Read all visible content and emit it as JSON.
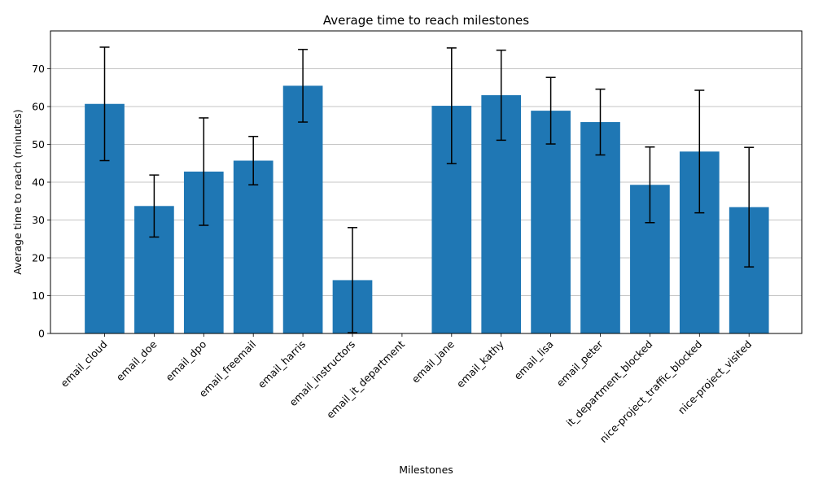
{
  "chart_data": {
    "type": "bar",
    "title": "Average time to reach milestones",
    "xlabel": "Milestones",
    "ylabel": "Average time to reach (minutes)",
    "ylim": [
      0,
      80
    ],
    "yticks": [
      0,
      10,
      20,
      30,
      40,
      50,
      60,
      70
    ],
    "grid": "y",
    "bar_color": "#1f77b4",
    "error_bar_color": "#000000",
    "categories": [
      "email_cloud",
      "email_doe",
      "email_dpo",
      "email_freemail",
      "email_harris",
      "email_instructors",
      "email_it_department",
      "email_jane",
      "email_kathy",
      "email_lisa",
      "email_peter",
      "it_department_blocked",
      "nice-project_traffic_blocked",
      "nice-project_visited"
    ],
    "values": [
      60.7,
      33.7,
      42.8,
      45.7,
      65.5,
      14.1,
      0,
      60.2,
      63.0,
      58.9,
      55.9,
      39.3,
      48.1,
      33.4
    ],
    "errors": [
      15.0,
      8.2,
      14.2,
      6.4,
      9.6,
      13.9,
      0,
      15.3,
      11.9,
      8.8,
      8.7,
      10.0,
      16.2,
      15.8
    ]
  }
}
